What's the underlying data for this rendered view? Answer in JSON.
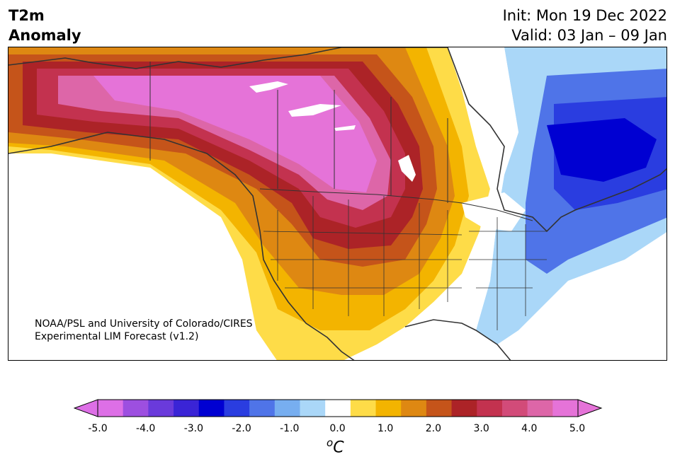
{
  "header": {
    "variable": "T2m",
    "subtitle": "Anomaly",
    "init": "Init: Mon 19 Dec 2022",
    "valid": "Valid: 03 Jan – 09 Jan"
  },
  "credit": {
    "line1": "NOAA/PSL and University of Colorado/CIRES",
    "line2": "Experimental LIM Forecast (v1.2)"
  },
  "colorbar": {
    "unit_base": "C",
    "unit_sup": "o",
    "ticks": [
      "-5.0",
      "-4.0",
      "-3.0",
      "-2.0",
      "-1.0",
      "0.0",
      "1.0",
      "2.0",
      "3.0",
      "4.0",
      "5.0"
    ],
    "colors": [
      "#dd6fe6",
      "#9d4fe0",
      "#6a3adb",
      "#3a24d6",
      "#0000d2",
      "#2a3de0",
      "#4f74e8",
      "#77aef0",
      "#aad7f8",
      "#ffffff",
      "#fedc48",
      "#f3b400",
      "#de8812",
      "#c5541a",
      "#ac2327",
      "#c3324f",
      "#d24b79",
      "#dd66a8",
      "#e573d8"
    ],
    "under_color": "#dd6fe6",
    "over_color": "#e573d8"
  },
  "map": {
    "region": "North America",
    "anomaly_colors": {
      "strong_warm": "#e573d8",
      "warm": "#c3324f",
      "moderate_warm": "#de8812",
      "weak_warm": "#fedc48",
      "weak_cold": "#aad7f8",
      "cold": "#4f74e8",
      "strong_cold": "#0000d2",
      "land_outline": "#333333"
    }
  }
}
